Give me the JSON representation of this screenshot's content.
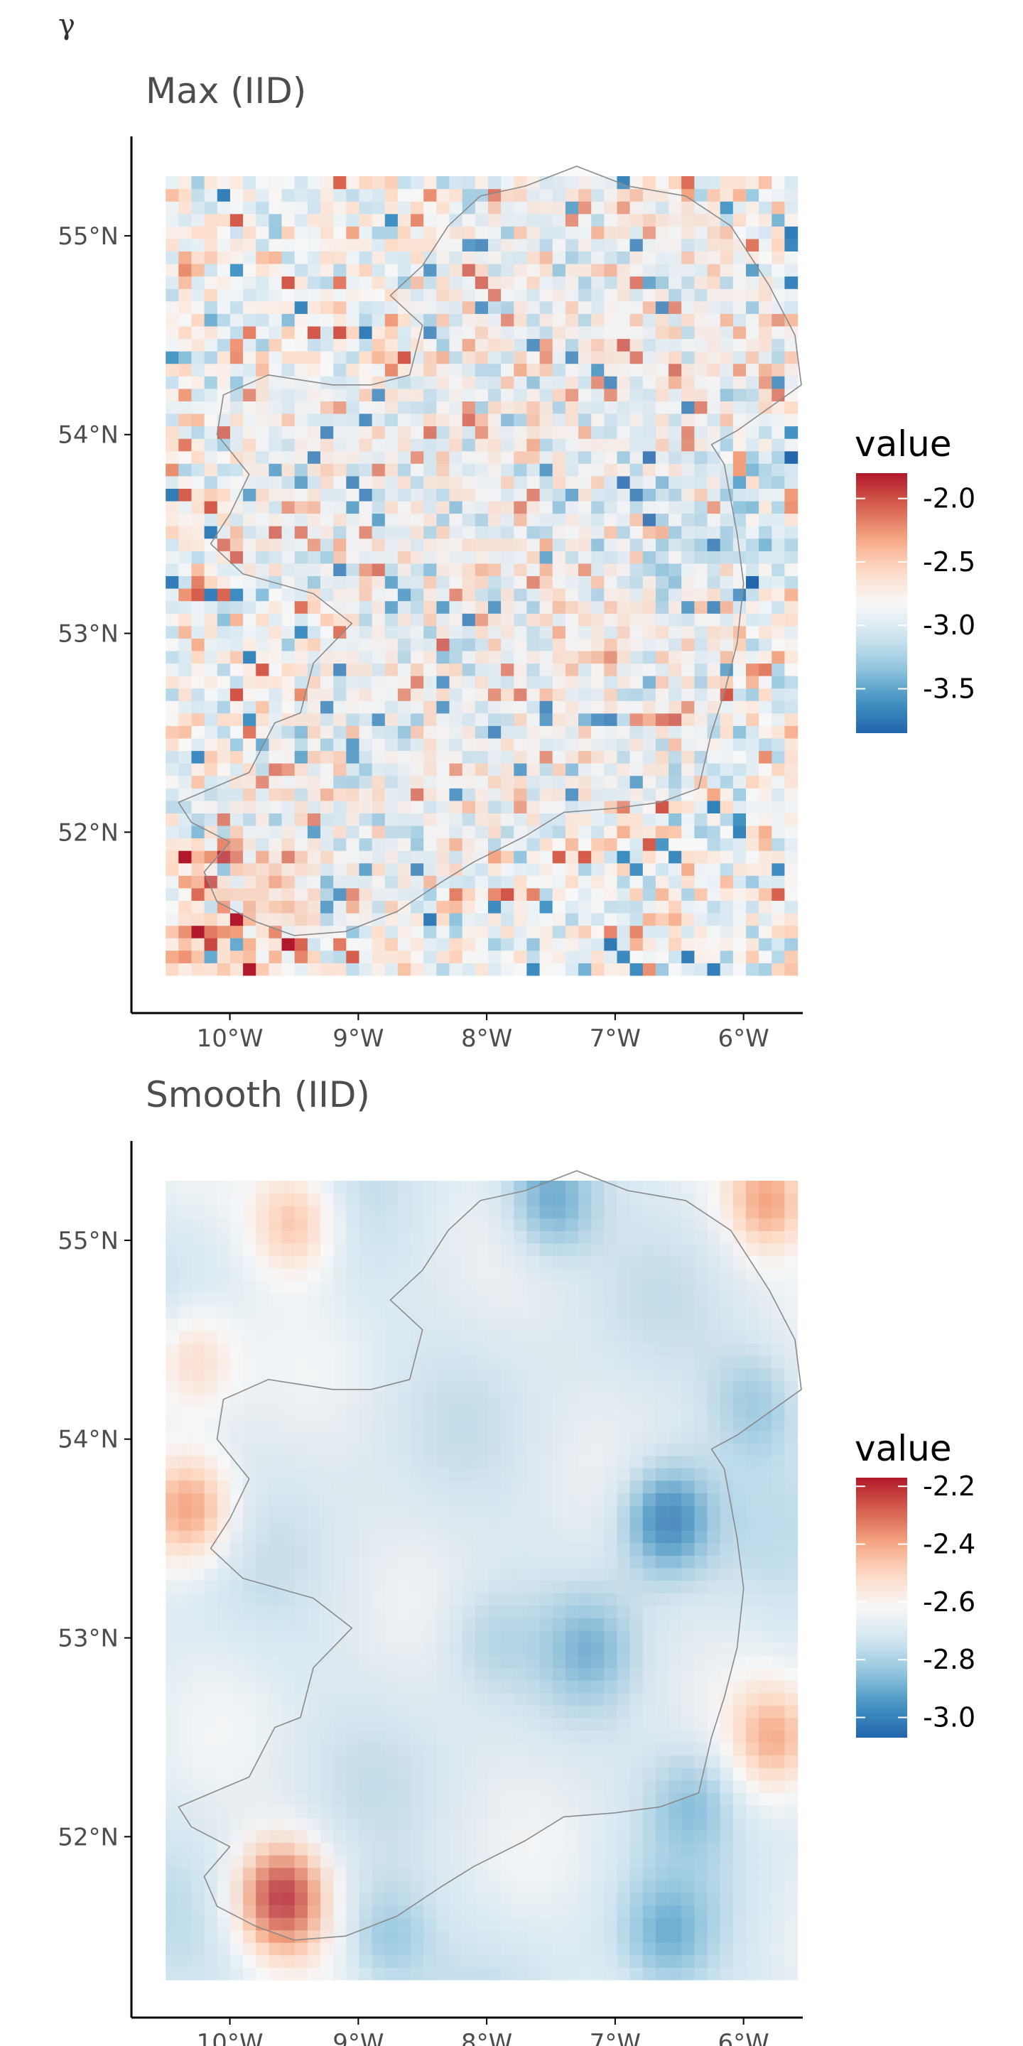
{
  "figure": {
    "corner_label": "γ"
  },
  "chart_data": [
    {
      "type": "heatmap",
      "title": "Max (IID)",
      "xlabel": "",
      "ylabel": "",
      "x_ticks": [
        "10°W",
        "9°W",
        "8°W",
        "7°W",
        "6°W"
      ],
      "x_tick_values": [
        -10,
        -9,
        -8,
        -7,
        -6
      ],
      "y_ticks": [
        "55°N",
        "54°N",
        "53°N",
        "52°N"
      ],
      "y_tick_values": [
        55,
        54,
        53,
        52
      ],
      "xlim": [
        -10.75,
        -5.55
      ],
      "ylim": [
        51.09,
        55.5
      ],
      "grid_extent": {
        "lon": [
          -10.5,
          -5.58
        ],
        "lat": [
          51.28,
          55.3
        ]
      },
      "legend": {
        "title": "value",
        "position": "right",
        "range": [
          -3.85,
          -1.8
        ],
        "breaks": [
          -2.0,
          -2.5,
          -3.0,
          -3.5
        ],
        "labels": [
          "-2.0",
          "-2.5",
          "-3.0",
          "-3.5"
        ]
      },
      "field_description": "Noisy per-cell estimates on a regular grid, mostly around -3.0 with scattered red (-2.0 to -2.5) and blue (-3.3 to -3.6) cells; map outline of Ireland overlaid.",
      "pattern": "noisy",
      "seed": 17
    },
    {
      "type": "heatmap",
      "title": "Smooth (IID)",
      "xlabel": "",
      "ylabel": "",
      "x_ticks": [
        "10°W",
        "9°W",
        "8°W",
        "7°W",
        "6°W"
      ],
      "x_tick_values": [
        -10,
        -9,
        -8,
        -7,
        -6
      ],
      "y_ticks": [
        "55°N",
        "54°N",
        "53°N",
        "52°N"
      ],
      "y_tick_values": [
        55,
        54,
        53,
        52
      ],
      "xlim": [
        -10.75,
        -5.55
      ],
      "ylim": [
        51.09,
        55.5
      ],
      "grid_extent": {
        "lon": [
          -10.5,
          -5.58
        ],
        "lat": [
          51.28,
          55.3
        ]
      },
      "legend": {
        "title": "value",
        "position": "right",
        "range": [
          -3.07,
          -2.17
        ],
        "breaks": [
          -2.2,
          -2.4,
          -2.6,
          -2.8,
          -3.0
        ],
        "labels": [
          "-2.2",
          "-2.4",
          "-2.6",
          "-2.8",
          "-3.0"
        ]
      },
      "hotspots": [
        {
          "lon": -9.6,
          "lat": 51.7,
          "value": -2.2
        },
        {
          "lon": -10.3,
          "lat": 53.65,
          "value": -2.4
        },
        {
          "lon": -9.5,
          "lat": 55.1,
          "value": -2.45
        },
        {
          "lon": -5.8,
          "lat": 55.2,
          "value": -2.4
        },
        {
          "lon": -5.75,
          "lat": 52.5,
          "value": -2.45
        },
        {
          "lon": -10.3,
          "lat": 54.4,
          "value": -2.5
        },
        {
          "lon": -6.6,
          "lat": 53.6,
          "value": -3.05
        },
        {
          "lon": -7.5,
          "lat": 55.2,
          "value": -2.95
        },
        {
          "lon": -7.2,
          "lat": 52.95,
          "value": -2.85
        },
        {
          "lon": -6.4,
          "lat": 52.2,
          "value": -2.85
        },
        {
          "lon": -6.6,
          "lat": 51.5,
          "value": -2.85
        },
        {
          "lon": -8.8,
          "lat": 51.5,
          "value": -2.85
        },
        {
          "lon": -5.9,
          "lat": 54.2,
          "value": -2.85
        },
        {
          "lon": -8.0,
          "lat": 53.0,
          "value": -2.8
        }
      ],
      "base_value": -2.7,
      "pattern": "smooth",
      "seed": 5
    }
  ],
  "colors": {
    "low": "#2166ac",
    "mid": "#f7f7f7",
    "high": "#b2182b",
    "axis": "#000000",
    "outline": "#8a8a8a",
    "text": "#4d4d4d"
  }
}
